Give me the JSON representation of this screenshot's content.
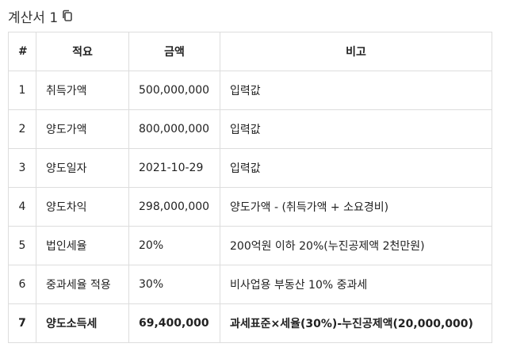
{
  "title": {
    "text": "계산서 1",
    "copy_icon": "copy-icon"
  },
  "table": {
    "headers": [
      "#",
      "적요",
      "금액",
      "비고"
    ],
    "rows": [
      {
        "no": "1",
        "item": "취득가액",
        "amount": "500,000,000",
        "note": "입력값"
      },
      {
        "no": "2",
        "item": "양도가액",
        "amount": "800,000,000",
        "note": "입력값"
      },
      {
        "no": "3",
        "item": "양도일자",
        "amount": "2021-10-29",
        "note": "입력값"
      },
      {
        "no": "4",
        "item": "양도차익",
        "amount": "298,000,000",
        "note": "양도가액 - (취득가액 + 소요경비)"
      },
      {
        "no": "5",
        "item": "법인세율",
        "amount": "20%",
        "note": "200억원 이하 20%(누진공제액 2천만원)"
      },
      {
        "no": "6",
        "item": "중과세율 적용",
        "amount": "30%",
        "note": "비사업용 부동산 10% 중과세"
      },
      {
        "no": "7",
        "item": "양도소득세",
        "amount": "69,400,000",
        "note": "과세표준×세율(30%)-누진공제액(20,000,000)"
      }
    ]
  }
}
